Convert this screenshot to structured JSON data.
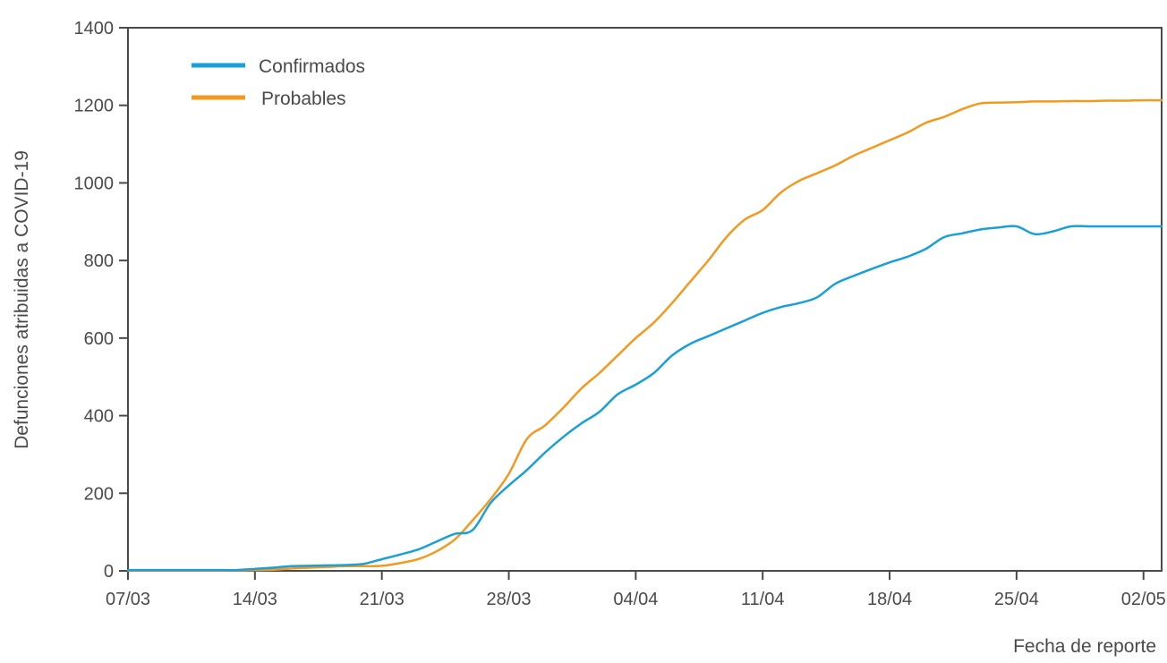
{
  "chart_data": {
    "type": "line",
    "title": "",
    "xlabel": "Fecha de reporte",
    "ylabel": "Defunciones atribuidas a COVID-19",
    "ylim": [
      0,
      1400
    ],
    "yticks": [
      0,
      200,
      400,
      600,
      800,
      1000,
      1200,
      1400
    ],
    "xlim": [
      0,
      57
    ],
    "xtick_positions": [
      0,
      7,
      14,
      21,
      28,
      35,
      42,
      49,
      56
    ],
    "xtick_labels": [
      "07/03",
      "14/03",
      "21/03",
      "28/03",
      "04/04",
      "11/04",
      "18/04",
      "25/04",
      "02/05"
    ],
    "grid": false,
    "legend_position": "top-left",
    "colors": {
      "confirmados": "#1a9fd6",
      "probables": "#f29a1f",
      "axis": "#4a4a4a"
    },
    "series": [
      {
        "name": "Confirmados",
        "color": "#1a9fd6",
        "x": [
          0,
          1,
          2,
          3,
          4,
          5,
          6,
          7,
          8,
          9,
          10,
          11,
          12,
          13,
          14,
          15,
          16,
          17,
          18,
          19,
          20,
          21,
          22,
          23,
          24,
          25,
          26,
          27,
          28,
          29,
          30,
          31,
          32,
          33,
          34,
          35,
          36,
          37,
          38,
          39,
          40,
          41,
          42,
          43,
          44,
          45,
          46,
          47,
          48,
          49,
          50,
          51,
          52,
          53,
          54,
          55,
          56,
          57
        ],
        "values": [
          2,
          2,
          2,
          2,
          2,
          2,
          2,
          5,
          8,
          12,
          13,
          14,
          15,
          18,
          30,
          42,
          55,
          75,
          95,
          105,
          175,
          220,
          260,
          305,
          345,
          380,
          410,
          455,
          480,
          510,
          555,
          585,
          605,
          625,
          645,
          665,
          680,
          690,
          705,
          740,
          760,
          778,
          795,
          810,
          830,
          860,
          870,
          880,
          885,
          888,
          868,
          875,
          888,
          888,
          888,
          888,
          888,
          888
        ]
      },
      {
        "name": "Probables",
        "color": "#f29a1f",
        "x": [
          0,
          1,
          2,
          3,
          4,
          5,
          6,
          7,
          8,
          9,
          10,
          11,
          12,
          13,
          14,
          15,
          16,
          17,
          18,
          19,
          20,
          21,
          22,
          23,
          24,
          25,
          26,
          27,
          28,
          29,
          30,
          31,
          32,
          33,
          34,
          35,
          36,
          37,
          38,
          39,
          40,
          41,
          42,
          43,
          44,
          45,
          46,
          47,
          48,
          49,
          50,
          51,
          52,
          53,
          54,
          55,
          56,
          57
        ],
        "values": [
          1,
          1,
          1,
          1,
          1,
          1,
          1,
          2,
          3,
          6,
          8,
          10,
          12,
          12,
          13,
          20,
          30,
          50,
          80,
          130,
          185,
          250,
          340,
          375,
          420,
          470,
          510,
          555,
          600,
          640,
          690,
          745,
          800,
          860,
          905,
          930,
          975,
          1005,
          1025,
          1045,
          1070,
          1090,
          1110,
          1130,
          1155,
          1170,
          1190,
          1205,
          1207,
          1208,
          1210,
          1210,
          1211,
          1211,
          1212,
          1212,
          1213,
          1213
        ]
      }
    ]
  }
}
